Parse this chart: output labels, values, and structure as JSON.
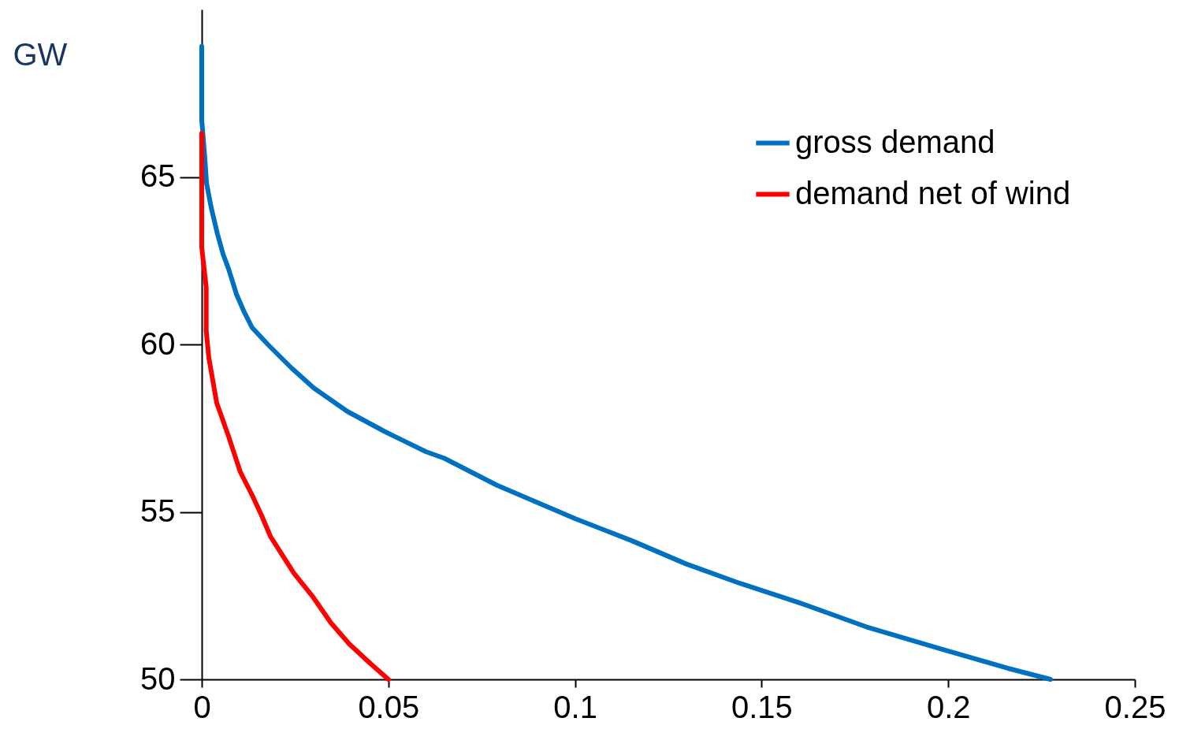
{
  "chart_data": {
    "type": "line",
    "ylabel": "GW",
    "xlim": [
      0,
      0.25
    ],
    "ylim": [
      50,
      70
    ],
    "xticks": [
      0,
      0.05,
      0.1,
      0.15,
      0.2,
      0.25
    ],
    "yticks": [
      50,
      55,
      60,
      65
    ],
    "grid": false,
    "legend": "top right",
    "marker": "none",
    "line_style": "solid",
    "series": [
      {
        "name": "gross demand",
        "color": "#0070c0",
        "x": [
          0,
          0,
          0.0008,
          0.0013,
          0.0025,
          0.0042,
          0.0057,
          0.0072,
          0.0093,
          0.0114,
          0.0135,
          0.0177,
          0.024,
          0.03,
          0.039,
          0.049,
          0.06,
          0.065,
          0.079,
          0.0895,
          0.1,
          0.115,
          0.1297,
          0.1444,
          0.1603,
          0.178,
          0.1993,
          0.216,
          0.2274
        ],
        "values": [
          68.9,
          66.7,
          65.6,
          64.8,
          64.1,
          63.3,
          62.7,
          62.25,
          61.5,
          60.96,
          60.5,
          60.0,
          59.3,
          58.7,
          58.0,
          57.4,
          56.8,
          56.6,
          55.8,
          55.3,
          54.8,
          54.15,
          53.45,
          52.86,
          52.28,
          51.57,
          50.87,
          50.33,
          50.0
        ]
      },
      {
        "name": "demand net of wind",
        "color": "#ff0000",
        "x": [
          0,
          0,
          0.0012,
          0.0012,
          0.0019,
          0.004,
          0.0072,
          0.0103,
          0.0135,
          0.016,
          0.0184,
          0.0247,
          0.0298,
          0.0346,
          0.0395,
          0.0452,
          0.05
        ],
        "values": [
          66.3,
          62.9,
          61.7,
          60.4,
          59.6,
          58.26,
          57.25,
          56.2,
          55.5,
          54.9,
          54.27,
          53.17,
          52.46,
          51.69,
          51.06,
          50.47,
          50.0
        ]
      }
    ]
  }
}
